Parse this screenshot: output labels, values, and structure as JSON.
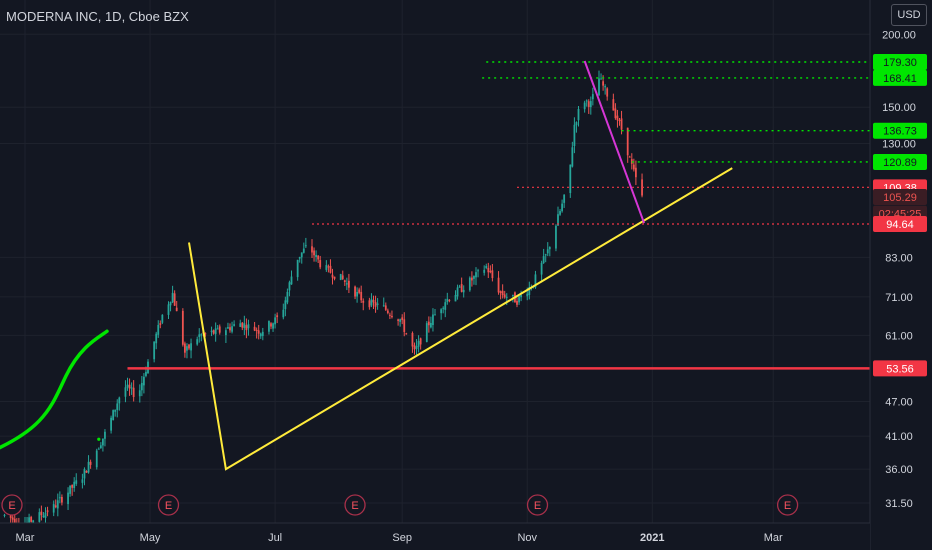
{
  "header": {
    "title": "MODERNA INC, 1D, Cboe BZX",
    "currency": "USD"
  },
  "colors": {
    "background": "#131722",
    "grid": "#1e222d",
    "axis_text": "#d1d4dc",
    "up": "#26a69a",
    "down": "#ef5350",
    "green_level": "#00e600",
    "red_level": "#f23645",
    "yellow_line": "#ffeb3b",
    "magenta_line": "#d636d6",
    "green_curve": "#00e600"
  },
  "price_axis": {
    "ticks": [
      {
        "label": "200.00",
        "value": 200
      },
      {
        "label": "150.00",
        "value": 150
      },
      {
        "label": "130.00",
        "value": 130
      },
      {
        "label": "83.00",
        "value": 83
      },
      {
        "label": "71.00",
        "value": 71
      },
      {
        "label": "61.00",
        "value": 61
      },
      {
        "label": "47.00",
        "value": 47
      },
      {
        "label": "41.00",
        "value": 41
      },
      {
        "label": "36.00",
        "value": 36
      },
      {
        "label": "31.50",
        "value": 31.5
      }
    ],
    "badges": [
      {
        "label": "179.30",
        "value": 179.3,
        "style": "green"
      },
      {
        "label": "168.41",
        "value": 168.41,
        "style": "green"
      },
      {
        "label": "136.73",
        "value": 136.73,
        "style": "green"
      },
      {
        "label": "120.89",
        "value": 120.89,
        "style": "green"
      },
      {
        "label": "109.38",
        "value": 109.38,
        "style": "red"
      },
      {
        "label": "105.29",
        "value": 105.29,
        "style": "red-dark"
      },
      {
        "label": "02:45:25",
        "value": 98.6,
        "style": "red-dark"
      },
      {
        "label": "94.64",
        "value": 94.64,
        "style": "red"
      },
      {
        "label": "53.56",
        "value": 53.56,
        "style": "red"
      }
    ]
  },
  "time_axis": {
    "ticks": [
      {
        "label": "Mar",
        "day": 0
      },
      {
        "label": "May",
        "day": 61
      },
      {
        "label": "Jul",
        "day": 122
      },
      {
        "label": "Sep",
        "day": 184
      },
      {
        "label": "Nov",
        "day": 245
      },
      {
        "label": "2021",
        "day": 306
      },
      {
        "label": "Mar",
        "day": 365
      }
    ],
    "earnings_markers": [
      {
        "label": "E",
        "day": -7
      },
      {
        "label": "E",
        "day": 70
      },
      {
        "label": "E",
        "day": 161
      },
      {
        "label": "E",
        "day": 250
      },
      {
        "label": "E",
        "day": 372
      }
    ]
  },
  "chart_data": {
    "type": "candlestick",
    "symbol": "MODERNA INC",
    "interval": "1D",
    "exchange": "Cboe BZX",
    "ylim": [
      30,
      205
    ],
    "y_scale": "log",
    "price_series_anchors": [
      {
        "day": -10,
        "price": 30
      },
      {
        "day": 0,
        "price": 29
      },
      {
        "day": 14,
        "price": 31
      },
      {
        "day": 28,
        "price": 35
      },
      {
        "day": 40,
        "price": 42
      },
      {
        "day": 48,
        "price": 50
      },
      {
        "day": 55,
        "price": 48
      },
      {
        "day": 62,
        "price": 58
      },
      {
        "day": 67,
        "price": 66
      },
      {
        "day": 72,
        "price": 72
      },
      {
        "day": 78,
        "price": 57
      },
      {
        "day": 85,
        "price": 61
      },
      {
        "day": 95,
        "price": 62
      },
      {
        "day": 105,
        "price": 64
      },
      {
        "day": 115,
        "price": 62
      },
      {
        "day": 125,
        "price": 66
      },
      {
        "day": 132,
        "price": 82
      },
      {
        "day": 138,
        "price": 87
      },
      {
        "day": 145,
        "price": 80
      },
      {
        "day": 155,
        "price": 76
      },
      {
        "day": 165,
        "price": 70
      },
      {
        "day": 175,
        "price": 68
      },
      {
        "day": 183,
        "price": 65
      },
      {
        "day": 190,
        "price": 57
      },
      {
        "day": 197,
        "price": 64
      },
      {
        "day": 205,
        "price": 70
      },
      {
        "day": 212,
        "price": 73
      },
      {
        "day": 218,
        "price": 76
      },
      {
        "day": 225,
        "price": 80
      },
      {
        "day": 232,
        "price": 72
      },
      {
        "day": 240,
        "price": 70
      },
      {
        "day": 248,
        "price": 75
      },
      {
        "day": 255,
        "price": 85
      },
      {
        "day": 260,
        "price": 97
      },
      {
        "day": 265,
        "price": 110
      },
      {
        "day": 268,
        "price": 140
      },
      {
        "day": 272,
        "price": 155
      },
      {
        "day": 276,
        "price": 152
      },
      {
        "day": 280,
        "price": 168
      },
      {
        "day": 284,
        "price": 158
      },
      {
        "day": 288,
        "price": 146
      },
      {
        "day": 292,
        "price": 135
      },
      {
        "day": 295,
        "price": 122
      },
      {
        "day": 299,
        "price": 110
      },
      {
        "day": 301,
        "price": 105
      }
    ],
    "horizontal_levels": [
      {
        "price": 179.3,
        "from_day": 225,
        "style": "green-dotted"
      },
      {
        "price": 168.41,
        "from_day": 223,
        "style": "green-dotted"
      },
      {
        "price": 136.73,
        "from_day": 291,
        "style": "green-dotted"
      },
      {
        "price": 120.89,
        "from_day": 296,
        "style": "green-dotted"
      },
      {
        "price": 109.38,
        "from_day": 240,
        "style": "red-dotted"
      },
      {
        "price": 94.64,
        "from_day": 140,
        "style": "red-dotted"
      },
      {
        "price": 53.56,
        "from_day": 50,
        "style": "red-solid"
      }
    ],
    "trendlines": [
      {
        "color": "yellow",
        "points": [
          {
            "day": 80,
            "price": 88
          },
          {
            "day": 98,
            "price": 36
          },
          {
            "day": 345,
            "price": 118
          }
        ]
      },
      {
        "color": "magenta",
        "points": [
          {
            "day": 273,
            "price": 180
          },
          {
            "day": 302,
            "price": 95
          }
        ]
      }
    ],
    "annotations": [
      {
        "type": "freehand-curve",
        "color": "green",
        "points": [
          {
            "day": -21,
            "price": 38
          },
          {
            "day": 10,
            "price": 42
          },
          {
            "day": 20,
            "price": 52
          },
          {
            "day": 40,
            "price": 62
          }
        ]
      },
      {
        "type": "dot",
        "color": "green",
        "day": 36,
        "price": 40.5
      }
    ]
  }
}
